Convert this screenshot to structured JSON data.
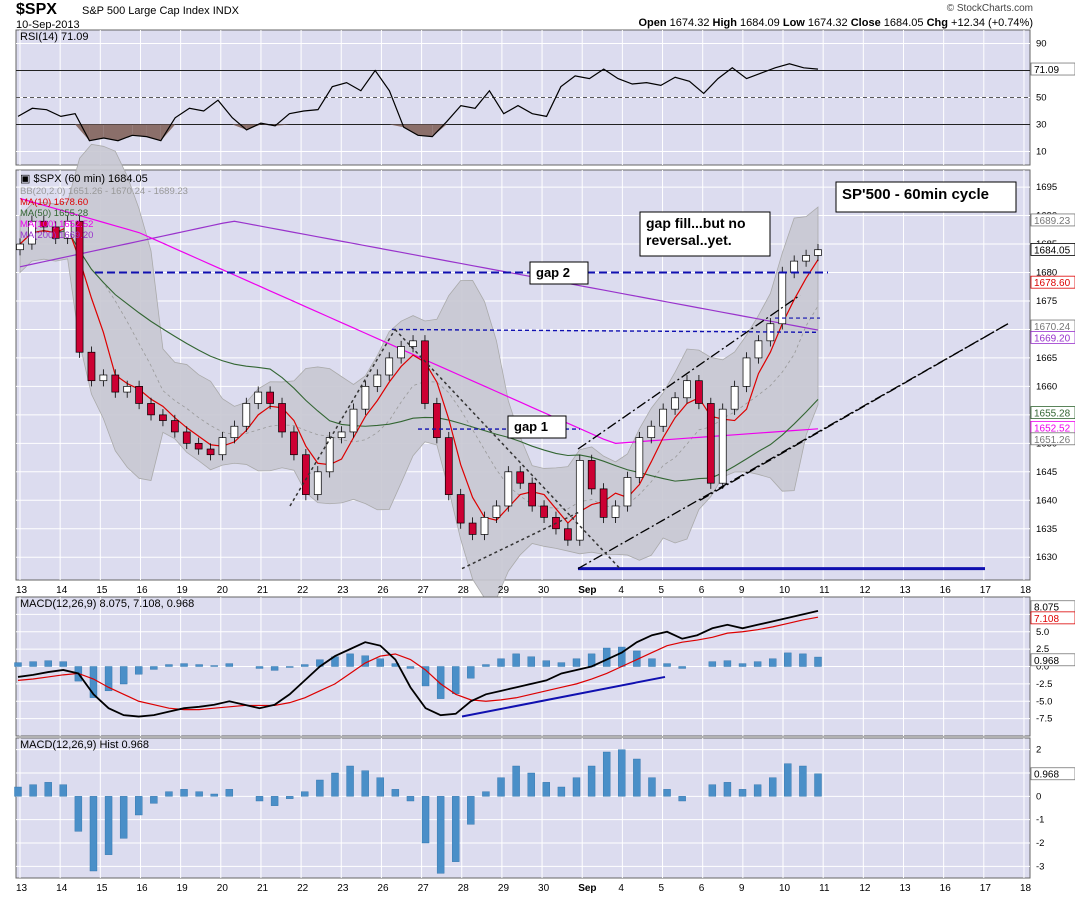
{
  "header": {
    "symbol": "$SPX",
    "name": "S&P 500 Large Cap Index",
    "exchange": "INDX",
    "date": "10-Sep-2013",
    "credit": "© StockCharts.com",
    "open_label": "Open",
    "open": "1674.32",
    "high_label": "High",
    "high": "1684.09",
    "low_label": "Low",
    "low": "1674.32",
    "close_label": "Close",
    "close": "1684.05",
    "chg_label": "Chg",
    "chg": "+12.34 (+0.74%)"
  },
  "chart_data": [
    {
      "type": "line",
      "panel": "rsi",
      "label": "RSI(14) 71.09",
      "ylim": [
        0,
        100
      ],
      "y_ticks": [
        10,
        30,
        50,
        70,
        90
      ],
      "reference_lines": [
        30,
        50,
        70
      ],
      "current_tag": "71.09",
      "series": [
        {
          "name": "RSI(14)",
          "values": [
            36,
            42,
            41,
            36,
            38,
            18,
            20,
            18,
            22,
            21,
            18,
            35,
            42,
            40,
            48,
            35,
            26,
            31,
            29,
            38,
            40,
            41,
            58,
            61,
            55,
            70,
            55,
            28,
            22,
            21,
            32,
            44,
            42,
            55,
            38,
            44,
            38,
            36,
            58,
            66,
            64,
            71,
            64,
            60,
            61,
            59,
            65,
            62,
            53,
            64,
            72,
            64,
            68,
            72,
            75,
            72,
            71
          ]
        }
      ],
      "color": "#000000",
      "oversold_fill": "#8b6f6a"
    },
    {
      "type": "candlestick",
      "panel": "price",
      "label": "$SPX (60 min) 1684.05",
      "ylim": [
        1626,
        1698
      ],
      "y_ticks": [
        1630,
        1635,
        1640,
        1645,
        1650,
        1655,
        1660,
        1665,
        1670,
        1675,
        1680,
        1685,
        1690,
        1695
      ],
      "x_tick_labels": [
        "13",
        "14",
        "15",
        "16",
        "19",
        "20",
        "21",
        "22",
        "23",
        "26",
        "27",
        "28",
        "29",
        "30",
        "Sep",
        "4",
        "5",
        "6",
        "9",
        "10",
        "11",
        "12",
        "13",
        "16",
        "17",
        "18"
      ],
      "overlays": [
        {
          "name": "BB(20,2.0)",
          "label": "BB(20,2.0) 1651.26 - 1670.24 - 1689.23",
          "color": "#999999"
        },
        {
          "name": "MA(10)",
          "label": "MA(10) 1678.60",
          "color": "#dd0000"
        },
        {
          "name": "MA(50)",
          "label": "MA(50) 1655.28",
          "color": "#336633"
        },
        {
          "name": "MA(100)",
          "label": "MA(100) 1652.52",
          "color": "#ee00ee"
        },
        {
          "name": "MA(200)",
          "label": "MA(200) 1669.20",
          "color": "#9933cc"
        }
      ],
      "right_tags": [
        "1689.23",
        "1684.05",
        "1678.60",
        "1670.24",
        "1669.20",
        "1655.28",
        "1652.52",
        "1651.26"
      ],
      "closes": [
        1685,
        1689,
        1688,
        1686,
        1689,
        1666,
        1661,
        1662,
        1659,
        1660,
        1657,
        1655,
        1654,
        1652,
        1650,
        1649,
        1648,
        1651,
        1653,
        1657,
        1659,
        1657,
        1652,
        1648,
        1641,
        1645,
        1651,
        1652,
        1656,
        1660,
        1662,
        1665,
        1667,
        1668,
        1657,
        1651,
        1641,
        1636,
        1634,
        1637,
        1639,
        1645,
        1643,
        1639,
        1637,
        1635,
        1633,
        1647,
        1642,
        1637,
        1639,
        1644,
        1651,
        1653,
        1656,
        1658,
        1661,
        1657,
        1643,
        1656,
        1660,
        1665,
        1668,
        1671,
        1680,
        1682,
        1683,
        1684
      ],
      "annotations": [
        "gap 2",
        "gap 1",
        "gap fill...but no reversal..yet.",
        "SP'500 - 60min cycle"
      ]
    },
    {
      "type": "line",
      "panel": "macd",
      "label": "MACD(12,26,9) 8.075, 7.108, 0.968",
      "ylim": [
        -10,
        10
      ],
      "y_ticks": [
        -7.5,
        -5.0,
        -2.5,
        0.0,
        2.5,
        5.0,
        7.5
      ],
      "right_tags": [
        "8.075",
        "7.108",
        "0.968"
      ],
      "series": [
        {
          "name": "MACD(12,26,9)",
          "values": [
            -1.5,
            -1.2,
            -0.8,
            -0.5,
            -1.0,
            -4.0,
            -6.0,
            -7.0,
            -7.2,
            -7.0,
            -6.5,
            -6.0,
            -5.8,
            -5.5,
            -5.0,
            -5.5,
            -6.0,
            -5.5,
            -4.0,
            -2.0,
            0.0,
            1.5,
            2.5,
            3.5,
            3.0,
            1.0,
            -3.0,
            -6.0,
            -7.0,
            -6.8,
            -5.0,
            -4.0,
            -3.5,
            -3.0,
            -2.5,
            -2.0,
            -1.0,
            -0.5,
            0.0,
            1.0,
            2.0,
            3.5,
            4.5,
            5.0,
            4.0,
            4.5,
            5.5,
            6.0,
            5.5,
            6.0,
            6.5,
            7.0,
            7.5,
            8.0
          ]
        },
        {
          "name": "signal",
          "values": [
            -2.0,
            -1.8,
            -1.5,
            -1.2,
            -1.0,
            -1.8,
            -3.0,
            -4.0,
            -5.0,
            -5.5,
            -6.0,
            -6.2,
            -6.2,
            -6.0,
            -5.8,
            -5.6,
            -5.6,
            -5.6,
            -5.2,
            -4.5,
            -3.5,
            -2.5,
            -1.0,
            0.5,
            1.5,
            1.8,
            1.0,
            -0.5,
            -2.5,
            -4.0,
            -4.8,
            -5.0,
            -4.8,
            -4.5,
            -4.0,
            -3.5,
            -3.0,
            -2.5,
            -1.8,
            -1.0,
            0.0,
            1.0,
            2.0,
            3.0,
            3.5,
            3.8,
            4.2,
            4.8,
            5.0,
            5.3,
            5.7,
            6.2,
            6.7,
            7.1
          ]
        }
      ],
      "colors": {
        "macd": "#000000",
        "signal": "#dd0000",
        "hist": "#4a8fc8"
      }
    },
    {
      "type": "bar",
      "panel": "hist",
      "label": "MACD(12,26,9) Hist 0.968",
      "ylim": [
        -3.5,
        2.5
      ],
      "y_ticks": [
        -3,
        -2,
        -1,
        0,
        1,
        2
      ],
      "right_tag": "0.968",
      "values": [
        0.4,
        0.5,
        0.6,
        0.5,
        -1.5,
        -3.2,
        -2.5,
        -1.8,
        -0.8,
        -0.3,
        0.2,
        0.3,
        0.2,
        0.1,
        0.3,
        0.0,
        -0.2,
        -0.4,
        -0.1,
        0.2,
        0.7,
        1.0,
        1.3,
        1.1,
        0.8,
        0.3,
        -0.2,
        -2.0,
        -3.3,
        -2.8,
        -1.2,
        0.2,
        0.8,
        1.3,
        1.0,
        0.6,
        0.4,
        0.8,
        1.3,
        1.9,
        2.0,
        1.6,
        0.8,
        0.3,
        -0.2,
        0.0,
        0.5,
        0.6,
        0.3,
        0.5,
        0.8,
        1.4,
        1.3,
        0.97
      ],
      "color": "#4a8fc8"
    }
  ]
}
